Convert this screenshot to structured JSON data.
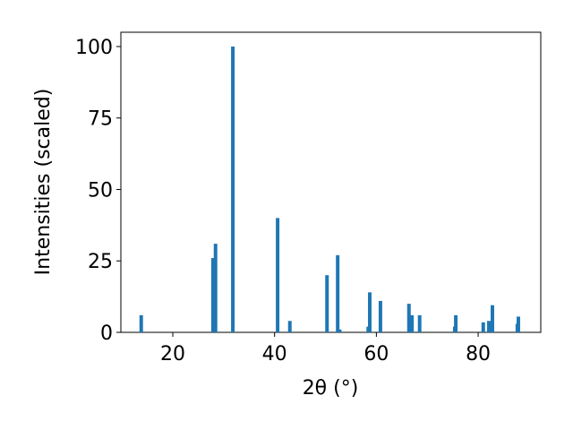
{
  "chart_data": {
    "type": "bar",
    "xlabel": "2θ (°)",
    "ylabel": "Intensities (scaled)",
    "x": [
      13.8,
      27.9,
      28.4,
      31.8,
      40.6,
      43.0,
      50.3,
      52.4,
      52.8,
      58.4,
      58.7,
      60.8,
      66.4,
      67.0,
      68.5,
      75.4,
      75.6,
      81.0,
      82.1,
      82.8,
      87.7,
      87.9
    ],
    "values": [
      6,
      26,
      31,
      100,
      40,
      4,
      20,
      27,
      1,
      2,
      14,
      11,
      10,
      6,
      6,
      2,
      6,
      3.5,
      4,
      9.5,
      3,
      5.5
    ],
    "color": "#1f77b4",
    "bar_width": 0.7,
    "xlim": [
      9.8,
      92.3
    ],
    "ylim": [
      0,
      105
    ],
    "xticks": [
      20,
      40,
      60,
      80
    ],
    "yticks": [
      0,
      25,
      50,
      75,
      100
    ],
    "grid": false
  }
}
